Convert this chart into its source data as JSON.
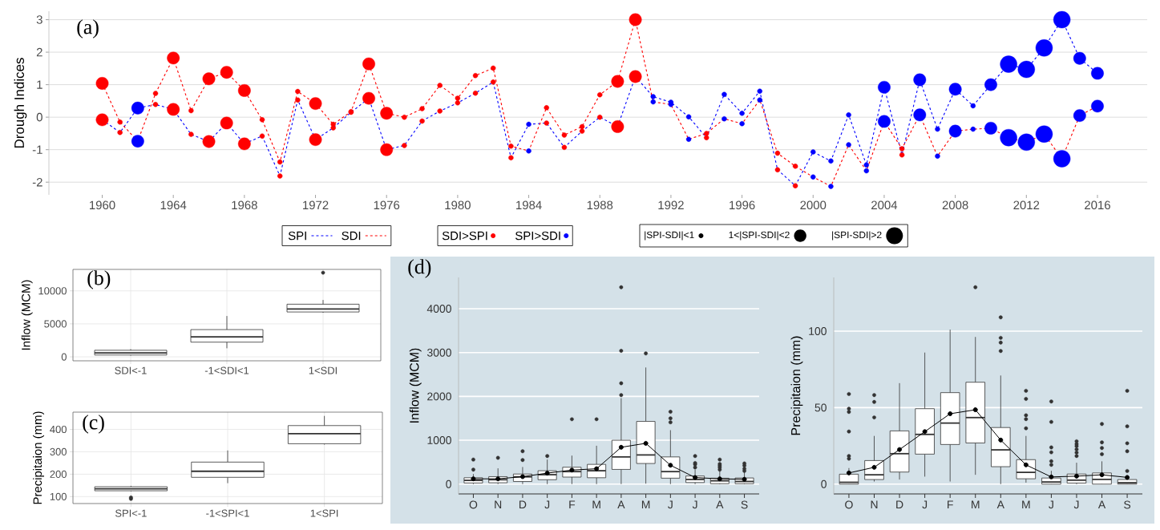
{
  "chart_data": [
    {
      "type": "line",
      "ylabel": "Drough Indices",
      "annotations": [
        "(a)",
        "SDI>SPI",
        "SPI>SDI",
        "|SPI-SDI|<1",
        "1<|SPI-SDI|<2",
        "|SPI-SDI|>2"
      ],
      "x": [
        1960,
        1961,
        1962,
        1963,
        1964,
        1965,
        1966,
        1967,
        1968,
        1969,
        1970,
        1971,
        1972,
        1973,
        1974,
        1975,
        1976,
        1977,
        1978,
        1979,
        1980,
        1981,
        1982,
        1983,
        1984,
        1985,
        1986,
        1987,
        1988,
        1989,
        1990,
        1991,
        1992,
        1993,
        1994,
        1995,
        1996,
        1997,
        1998,
        1999,
        2000,
        2001,
        2002,
        2003,
        2004,
        2005,
        2006,
        2007,
        2008,
        2009,
        2010,
        2011,
        2012,
        2013,
        2014,
        2015,
        2016
      ],
      "xlim": [
        1957,
        2018.8
      ],
      "xticks": [
        1960,
        1964,
        1968,
        1972,
        1976,
        1980,
        1984,
        1988,
        1992,
        1996,
        2000,
        2004,
        2008,
        2012,
        2016
      ],
      "ylim": [
        -2.39,
        3.26
      ],
      "yticks": [
        -2,
        -1,
        0,
        1,
        2,
        3
      ],
      "grid": "y",
      "legend": "bottom",
      "marker": "circle",
      "series": [
        {
          "name": "SPI",
          "color": "#0000ff",
          "line_style": "dashed",
          "values": [
            -0.08,
            -0.47,
            0.28,
            0.39,
            0.24,
            -0.53,
            -0.75,
            -0.18,
            -0.82,
            -0.58,
            -1.81,
            0.53,
            -0.69,
            -0.33,
            0.15,
            0.58,
            -1.0,
            -0.87,
            -0.12,
            0.19,
            0.44,
            0.74,
            1.08,
            -1.25,
            -0.22,
            -0.18,
            -0.93,
            -0.43,
            0.0,
            -0.29,
            1.25,
            0.63,
            0.46,
            0.01,
            -0.63,
            0.7,
            0.12,
            0.8,
            -1.62,
            -2.11,
            -1.07,
            -1.35,
            0.07,
            -1.47,
            0.92,
            -1.16,
            1.15,
            -0.37,
            0.86,
            0.35,
            1.0,
            1.63,
            1.47,
            2.13,
            3.0,
            1.81,
            1.35
          ]
        },
        {
          "name": "SDI",
          "color": "#ff0000",
          "line_style": "dashed",
          "values": [
            1.04,
            -0.15,
            -0.74,
            0.73,
            1.82,
            0.2,
            1.18,
            1.38,
            0.82,
            -0.08,
            -1.38,
            0.79,
            0.42,
            -0.22,
            0.17,
            1.64,
            0.12,
            0.0,
            0.26,
            0.98,
            0.58,
            1.28,
            1.51,
            -0.89,
            -1.04,
            0.29,
            -0.55,
            -0.29,
            0.69,
            1.1,
            3.0,
            0.47,
            0.39,
            -0.68,
            -0.5,
            -0.05,
            -0.2,
            0.53,
            -1.11,
            -1.51,
            -1.84,
            -2.13,
            -0.85,
            -1.65,
            -0.13,
            -0.97,
            0.07,
            -1.2,
            -0.43,
            -0.37,
            -0.34,
            -0.63,
            -0.77,
            -0.52,
            -1.28,
            0.05,
            0.34
          ]
        }
      ]
    },
    {
      "type": "box",
      "ylabel": "Inflow (MCM)",
      "annotations": [
        "(b)"
      ],
      "categories": [
        "SDI<-1",
        "-1<SDI<1",
        "1<SDI"
      ],
      "ylim": [
        -600,
        13250
      ],
      "yticks": [
        0,
        5000,
        10000
      ],
      "grid": true,
      "boxes": [
        {
          "low": 200,
          "q1": 280,
          "median": 600,
          "q3": 1000,
          "high": 1170
        },
        {
          "low": 1300,
          "q1": 2230,
          "median": 3040,
          "q3": 4130,
          "high": 6190
        },
        {
          "low": 6680,
          "q1": 6800,
          "median": 7250,
          "q3": 7980,
          "high": 8620,
          "outliers": [
            12750
          ]
        }
      ]
    },
    {
      "type": "box",
      "ylabel": "Precipitaion (mm)",
      "annotations": [
        "(c)"
      ],
      "categories": [
        "SPI<-1",
        "-1<SPI<1",
        "1<SPI"
      ],
      "ylim": [
        69,
        477
      ],
      "yticks": [
        100,
        200,
        300,
        400
      ],
      "grid": true,
      "boxes": [
        {
          "low": 124,
          "q1": 126,
          "median": 135,
          "q3": 144,
          "high": 148,
          "outliers": [
            90,
            96
          ]
        },
        {
          "low": 160,
          "q1": 186,
          "median": 213,
          "q3": 254,
          "high": 306
        },
        {
          "low": 332,
          "q1": 336,
          "median": 381,
          "q3": 417,
          "high": 460
        }
      ]
    },
    {
      "type": "box",
      "ylabel": "Inflow (MCM)",
      "annotations": [
        "(d)"
      ],
      "categories": [
        "O",
        "N",
        "D",
        "J",
        "F",
        "M",
        "A",
        "M",
        "J",
        "J",
        "A",
        "S"
      ],
      "ylim": [
        -224,
        4714
      ],
      "yticks": [
        0,
        1000,
        2000,
        3000,
        4000
      ],
      "grid": "y",
      "marker": "circle",
      "boxes": [
        {
          "low": 0,
          "q1": 25,
          "median": 85,
          "q3": 145,
          "high": 230,
          "outliers": [
            330,
            560
          ]
        },
        {
          "low": 0,
          "q1": 30,
          "median": 100,
          "q3": 170,
          "high": 360,
          "outliers": [
            600
          ]
        },
        {
          "low": 0,
          "q1": 60,
          "median": 165,
          "q3": 230,
          "high": 390,
          "outliers": [
            550,
            750
          ]
        },
        {
          "low": 0,
          "q1": 100,
          "median": 215,
          "q3": 305,
          "high": 560,
          "outliers": [
            640
          ]
        },
        {
          "low": 0,
          "q1": 160,
          "median": 285,
          "q3": 385,
          "high": 650,
          "outliers": [
            1480
          ]
        },
        {
          "low": 0,
          "q1": 145,
          "median": 305,
          "q3": 450,
          "high": 875,
          "outliers": [
            1480
          ]
        },
        {
          "low": 0,
          "q1": 335,
          "median": 620,
          "q3": 1000,
          "high": 1960,
          "outliers": [
            2030,
            2300,
            3040,
            4490
          ]
        },
        {
          "low": 10,
          "q1": 470,
          "median": 665,
          "q3": 1430,
          "high": 2660,
          "outliers": [
            2980
          ]
        },
        {
          "low": 0,
          "q1": 135,
          "median": 285,
          "q3": 620,
          "high": 1230,
          "outliers": [
            1410,
            1500,
            1650
          ]
        },
        {
          "low": 0,
          "q1": 35,
          "median": 105,
          "q3": 185,
          "high": 330,
          "outliers": [
            380,
            450,
            480,
            640
          ]
        },
        {
          "low": 0,
          "q1": 10,
          "median": 75,
          "q3": 135,
          "high": 290,
          "outliers": [
            330,
            380,
            420,
            460,
            560
          ]
        },
        {
          "low": 0,
          "q1": 10,
          "median": 60,
          "q3": 140,
          "high": 270,
          "outliers": [
            300,
            350,
            420,
            470
          ]
        }
      ],
      "series": [
        {
          "type": "line",
          "color": "#000000",
          "values": [
            120,
            120,
            170,
            250,
            320,
            350,
            840,
            930,
            430,
            150,
            120,
            110
          ]
        }
      ]
    },
    {
      "type": "box",
      "ylabel": "Precipitaion (mm)",
      "categories": [
        "O",
        "N",
        "D",
        "J",
        "F",
        "M",
        "A",
        "M",
        "J",
        "J",
        "A",
        "S"
      ],
      "ylim": [
        -6.4,
        135.1
      ],
      "yticks": [
        0,
        50,
        100
      ],
      "grid": "y",
      "marker": "circle",
      "boxes": [
        {
          "low": 0,
          "q1": 0,
          "median": 1.2,
          "q3": 6.5,
          "high": 10.5,
          "outliers": [
            16.6,
            18.4,
            34.4,
            47.2,
            49.3,
            58.9
          ]
        },
        {
          "low": 1.7,
          "q1": 3,
          "median": 6.1,
          "q3": 15.4,
          "high": 31.5,
          "outliers": [
            43.6,
            53.7,
            58.2
          ]
        },
        {
          "low": 3,
          "q1": 7.9,
          "median": 19.9,
          "q3": 34.8,
          "high": 66
        },
        {
          "low": 4.9,
          "q1": 19.6,
          "median": 32.5,
          "q3": 49.3,
          "high": 86
        },
        {
          "low": 1.7,
          "q1": 25.9,
          "median": 39.9,
          "q3": 59.8,
          "high": 101
        },
        {
          "low": 6.1,
          "q1": 26.9,
          "median": 43.5,
          "q3": 66.6,
          "high": 96.2,
          "outliers": [
            128.7
          ]
        },
        {
          "low": 0,
          "q1": 11.4,
          "median": 22.4,
          "q3": 37,
          "high": 71,
          "outliers": [
            87,
            92.5,
            95.6,
            109
          ]
        },
        {
          "low": 1,
          "q1": 3.5,
          "median": 7.7,
          "q3": 16,
          "high": 31.5,
          "outliers": [
            36.5,
            42.5,
            45,
            55.7,
            61
          ]
        },
        {
          "low": 0,
          "q1": 0,
          "median": 1.4,
          "q3": 4,
          "high": 8.7,
          "outliers": [
            12.6,
            15,
            20.8,
            24,
            40.7,
            54
          ]
        },
        {
          "low": 0,
          "q1": 0.7,
          "median": 2.6,
          "q3": 6.6,
          "high": 14,
          "outliers": [
            18.4,
            20.6,
            22.7,
            24.8,
            26.2,
            28
          ]
        },
        {
          "low": 0,
          "q1": 0,
          "median": 3.1,
          "q3": 7.3,
          "high": 14.9,
          "outliers": [
            19.6,
            23.6,
            27.3,
            39.3
          ]
        },
        {
          "low": 0,
          "q1": 0,
          "median": 0.9,
          "q3": 3,
          "high": 4.4,
          "outliers": [
            8.6,
            21.5,
            26.7,
            37.8,
            61
          ]
        }
      ],
      "series": [
        {
          "type": "line",
          "color": "#000000",
          "values": [
            7.3,
            11,
            22.6,
            34.3,
            46,
            48.6,
            28.8,
            12.6,
            4.7,
            5.2,
            6.1,
            4.4
          ]
        }
      ]
    }
  ]
}
